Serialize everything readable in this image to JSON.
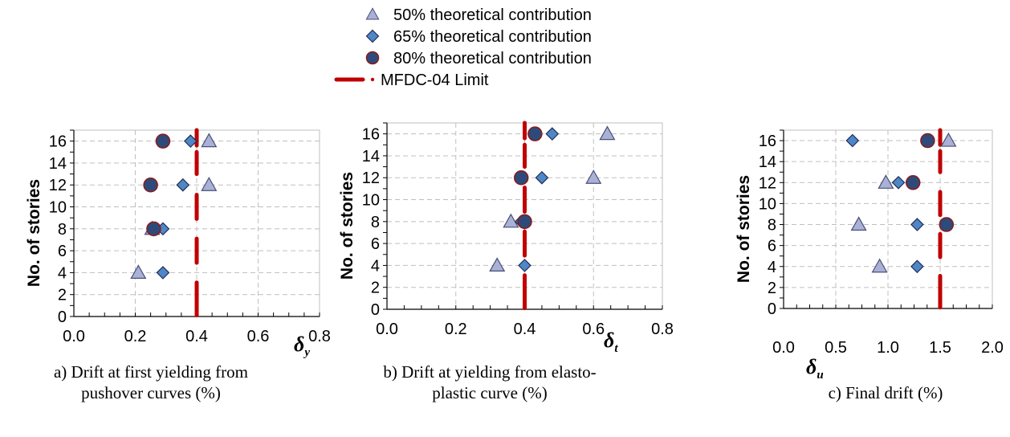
{
  "colors": {
    "triangle_fill": "#A9B2D6",
    "triangle_stroke": "#4B4F77",
    "diamond_fill": "#4F86C6",
    "diamond_stroke": "#1F2F56",
    "circle_fill": "#2E4A7A",
    "circle_stroke": "#8B1A1A",
    "limit_color": "#C00000",
    "grid": "#BFBFBF",
    "axis": "#000000"
  },
  "legend": {
    "items": [
      {
        "marker": "triangle",
        "label": "50% theoretical contribution"
      },
      {
        "marker": "diamond",
        "label": "65% theoretical contribution"
      },
      {
        "marker": "circle",
        "label": "80% theoretical contribution"
      },
      {
        "marker": "limit",
        "label": "MFDC-04 Limit"
      }
    ]
  },
  "chart_data": [
    {
      "type": "scatter",
      "ylabel": "No. of stories",
      "xlabel_symbol": "δ",
      "xlabel_sub": "y",
      "caption": [
        "a) Drift at first yielding from",
        "pushover curves (%)"
      ],
      "xlim": [
        0,
        0.8
      ],
      "ylim": [
        0,
        17
      ],
      "xticks": [
        0.0,
        0.2,
        0.4,
        0.6,
        0.8
      ],
      "xtick_labels": [
        "0.0",
        "0.2",
        "0.4",
        "0.6",
        "0.8"
      ],
      "yticks": [
        0,
        2,
        4,
        6,
        8,
        10,
        12,
        14,
        16
      ],
      "grid": true,
      "limit_x": 0.4,
      "series": [
        {
          "name": "50% theoretical contribution",
          "marker": "triangle",
          "points": [
            [
              0.44,
              16
            ],
            [
              0.44,
              12
            ],
            [
              0.255,
              8
            ],
            [
              0.21,
              4
            ]
          ]
        },
        {
          "name": "65% theoretical contribution",
          "marker": "diamond",
          "points": [
            [
              0.38,
              16
            ],
            [
              0.355,
              12
            ],
            [
              0.29,
              8
            ],
            [
              0.29,
              4
            ]
          ]
        },
        {
          "name": "80% theoretical contribution",
          "marker": "circle",
          "points": [
            [
              0.29,
              16
            ],
            [
              0.25,
              12
            ],
            [
              0.26,
              8
            ]
          ]
        }
      ]
    },
    {
      "type": "scatter",
      "ylabel": "No. of stories",
      "xlabel_symbol": "δ",
      "xlabel_sub": "t",
      "caption": [
        "b) Drift at yielding from elasto-",
        "plastic curve (%)"
      ],
      "xlim": [
        0,
        0.8
      ],
      "ylim": [
        0,
        17
      ],
      "xticks": [
        0.0,
        0.2,
        0.4,
        0.6,
        0.8
      ],
      "xtick_labels": [
        "0.0",
        "0.2",
        "0.4",
        "0.6",
        "0.8"
      ],
      "yticks": [
        0,
        2,
        4,
        6,
        8,
        10,
        12,
        14,
        16
      ],
      "grid": true,
      "limit_x": 0.4,
      "series": [
        {
          "name": "50% theoretical contribution",
          "marker": "triangle",
          "points": [
            [
              0.64,
              16
            ],
            [
              0.6,
              12
            ],
            [
              0.36,
              8
            ],
            [
              0.32,
              4
            ]
          ]
        },
        {
          "name": "65% theoretical contribution",
          "marker": "diamond",
          "points": [
            [
              0.48,
              16
            ],
            [
              0.45,
              12
            ],
            [
              0.39,
              8
            ],
            [
              0.4,
              4
            ]
          ]
        },
        {
          "name": "80% theoretical contribution",
          "marker": "circle",
          "points": [
            [
              0.43,
              16
            ],
            [
              0.39,
              12
            ],
            [
              0.4,
              8
            ]
          ]
        }
      ]
    },
    {
      "type": "scatter",
      "ylabel": "No. of stories",
      "xlabel_symbol": "δ",
      "xlabel_sub": "u",
      "caption": [
        "c) Final drift (%)"
      ],
      "xlim": [
        0,
        2.0
      ],
      "ylim": [
        0,
        17
      ],
      "xticks": [
        0.0,
        0.5,
        1.0,
        1.5,
        2.0
      ],
      "xtick_labels": [
        "0.0",
        "0.5",
        "1.0",
        "1.5",
        "2.0"
      ],
      "yticks": [
        0,
        2,
        4,
        6,
        8,
        10,
        12,
        14,
        16
      ],
      "grid": true,
      "limit_x": 1.5,
      "series": [
        {
          "name": "50% theoretical contribution",
          "marker": "triangle",
          "points": [
            [
              1.58,
              16
            ],
            [
              0.98,
              12
            ],
            [
              0.72,
              8
            ],
            [
              0.92,
              4
            ]
          ]
        },
        {
          "name": "65% theoretical contribution",
          "marker": "diamond",
          "points": [
            [
              0.66,
              16
            ],
            [
              1.1,
              12
            ],
            [
              1.28,
              8
            ],
            [
              1.28,
              4
            ]
          ]
        },
        {
          "name": "80% theoretical contribution",
          "marker": "circle",
          "points": [
            [
              1.38,
              16
            ],
            [
              1.24,
              12
            ],
            [
              1.56,
              8
            ]
          ]
        }
      ]
    }
  ]
}
